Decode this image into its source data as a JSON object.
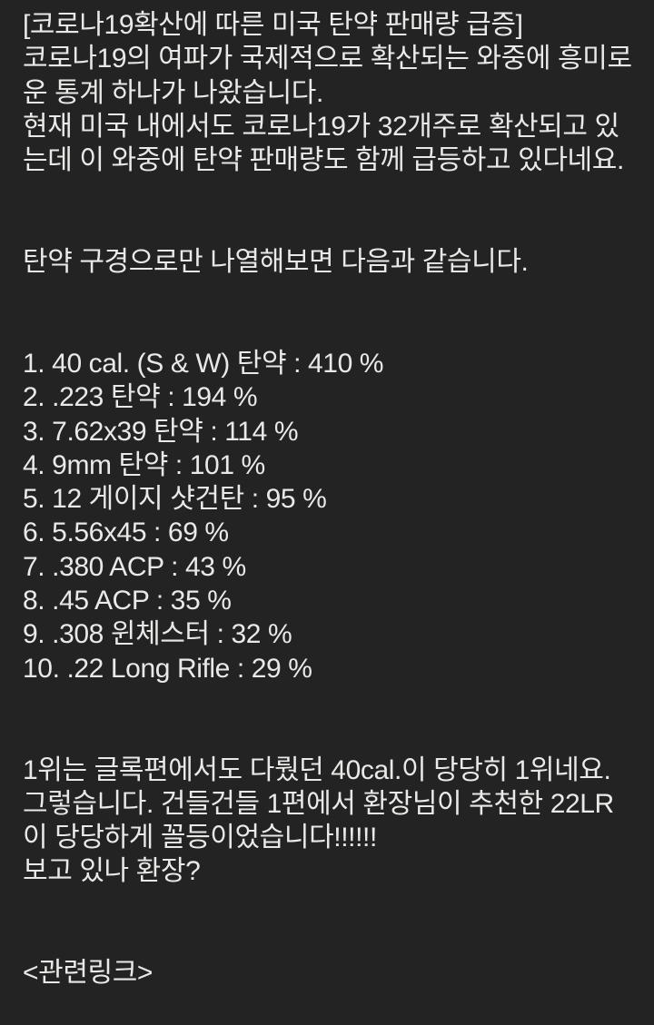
{
  "colors": {
    "background": "#232323",
    "text": "#e9e9e7"
  },
  "post": {
    "title": "[코로나19확산에 따른 미국 탄약 판매량 급증]",
    "intro_lines": [
      "코로나19의 여파가 국제적으로 확산되는 와중에 흥미로",
      "운 통계 하나가 나왔습니다.",
      "현재 미국 내에서도 코로나19가 32개주로 확산되고 있",
      "는데 이 와중에 탄약 판매량도 함께 급등하고 있다네요."
    ],
    "list_heading": "탄약 구경으로만 나열해보면 다음과 같습니다.",
    "ranking": [
      {
        "rank": 1,
        "caliber": "40 cal. (S & W) 탄약",
        "percent": "410 %",
        "text": "1. 40 cal. (S & W) 탄약 : 410 %"
      },
      {
        "rank": 2,
        "caliber": ".223 탄약",
        "percent": "194 %",
        "text": "2. .223 탄약 : 194 %"
      },
      {
        "rank": 3,
        "caliber": "7.62x39 탄약",
        "percent": "114 %",
        "text": "3. 7.62x39 탄약 : 114 %"
      },
      {
        "rank": 4,
        "caliber": "9mm 탄약",
        "percent": "101 %",
        "text": "4. 9mm 탄약 : 101 %"
      },
      {
        "rank": 5,
        "caliber": "12 게이지 샷건탄",
        "percent": "95 %",
        "text": "5. 12 게이지 샷건탄 : 95 %"
      },
      {
        "rank": 6,
        "caliber": "5.56x45",
        "percent": "69 %",
        "text": "6. 5.56x45 : 69 %"
      },
      {
        "rank": 7,
        "caliber": ".380 ACP",
        "percent": "43 %",
        "text": "7. .380 ACP : 43 %"
      },
      {
        "rank": 8,
        "caliber": ".45 ACP",
        "percent": "35 %",
        "text": "8. .45 ACP : 35 %"
      },
      {
        "rank": 9,
        "caliber": ".308 윈체스터",
        "percent": "32 %",
        "text": "9. .308 윈체스터 : 32 %"
      },
      {
        "rank": 10,
        "caliber": ".22 Long Rifle",
        "percent": "29 %",
        "text": "10. .22 Long Rifle : 29 %"
      }
    ],
    "outro_lines": [
      "1위는 글록편에서도 다뤘던 40cal.이 당당히 1위네요.",
      "그렇습니다. 건들건들 1편에서 환장님이 추천한 22LR",
      "이 당당하게 꼴등이었습니다!!!!!!",
      "보고 있나 환장?"
    ],
    "related_link_heading": "<관련링크>"
  }
}
